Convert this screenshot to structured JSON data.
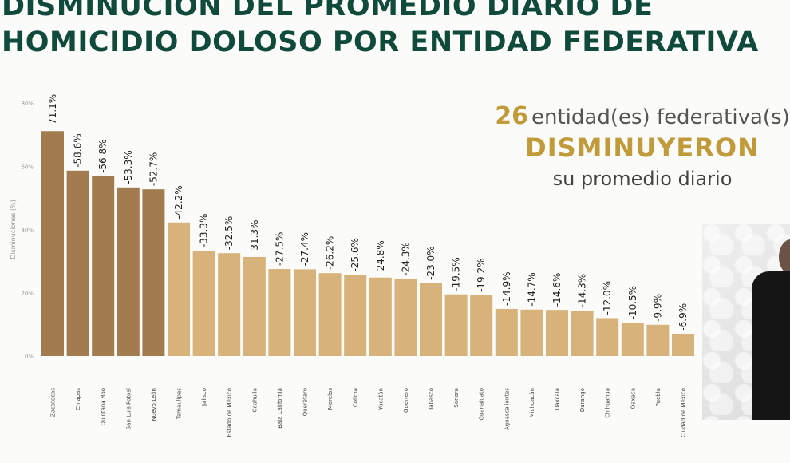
{
  "title_lines": [
    "DISMINUCIÓN DEL PROMEDIO DIARIO DE",
    "HOMICIDIO DOLOSO POR ENTIDAD FEDERATIVA"
  ],
  "side_text": {
    "count": "26",
    "count_suffix": "entidad(es) federativa(s)",
    "headline": "DISMINUYERON",
    "subline": "su promedio diario"
  },
  "colors": {
    "title": "#0f4a3a",
    "accent_gold": "#c19a3a",
    "bar_dark": "#a27b4f",
    "bar_light": "#d7b27a"
  },
  "chart_data": {
    "type": "bar",
    "title": "",
    "xlabel": "",
    "ylabel": "Disminuciones (%)",
    "ylim": [
      0,
      80
    ],
    "yticks": [
      "0%",
      "20%",
      "40%",
      "60%",
      "80%"
    ],
    "grid": false,
    "categories": [
      "Zacatecas",
      "Chiapas",
      "Quintana Roo",
      "San Luis Potosí",
      "Nuevo León",
      "Tamaulipas",
      "Jalisco",
      "Estado de México",
      "Coahuila",
      "Baja California",
      "Querétaro",
      "Morelos",
      "Colima",
      "Yucatán",
      "Guerrero",
      "Tabasco",
      "Sonora",
      "Guanajuato",
      "Aguascalientes",
      "Michoacán",
      "Tlaxcala",
      "Durango",
      "Chihuahua",
      "Oaxaca",
      "Puebla",
      "Ciudad de México"
    ],
    "values": [
      71.1,
      58.6,
      56.8,
      53.3,
      52.7,
      42.2,
      33.3,
      32.5,
      31.3,
      27.5,
      27.4,
      26.2,
      25.6,
      24.8,
      24.3,
      23.0,
      19.5,
      19.2,
      14.9,
      14.7,
      14.6,
      14.3,
      12.0,
      10.5,
      9.9,
      6.9
    ],
    "data_labels": [
      "-71.1%",
      "-58.6%",
      "-56.8%",
      "-53.3%",
      "-52.7%",
      "-42.2%",
      "-33.3%",
      "-32.5%",
      "-31.3%",
      "-27.5%",
      "-27.4%",
      "-26.2%",
      "-25.6%",
      "-24.8%",
      "-24.3%",
      "-23.0%",
      "-19.5%",
      "-19.2%",
      "-14.9%",
      "-14.7%",
      "-14.6%",
      "-14.3%",
      "-12.0%",
      "-10.5%",
      "-9.9%",
      "-6.9%"
    ],
    "highlighted_top": 5
  }
}
